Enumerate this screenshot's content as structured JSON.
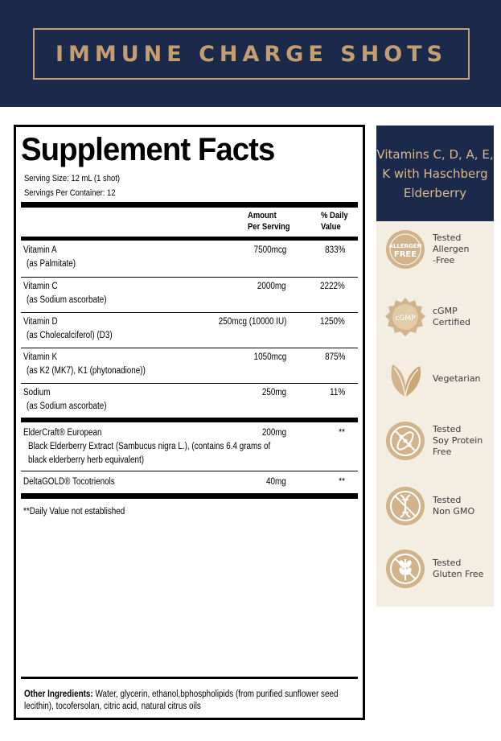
{
  "banner": {
    "title": "IMMUNE CHARGE SHOTS"
  },
  "facts": {
    "title": "Supplement Facts",
    "serving_size": "Serving Size: 12 mL (1 shot)",
    "servings_per_container": "Servings Per Container: 12",
    "header_amount_1": "Amount",
    "header_amount_2": "Per Serving",
    "header_dv_1": "% Daily",
    "header_dv_2": "Value",
    "rows": [
      {
        "name": "Vitamin A",
        "sub": "(as Palmitate)",
        "amount": "7500mcg",
        "dv": "833%"
      },
      {
        "name": "Vitamin C",
        "sub": "(as Sodium ascorbate)",
        "amount": "2000mg",
        "dv": "2222%"
      },
      {
        "name": "Vitamin D",
        "sub": "(as Cholecalciferol) (D3)",
        "amount": "250mcg (10000 IU)",
        "dv": "1250%"
      },
      {
        "name": "Vitamin K",
        "sub": "(as K2 (MK7), K1 (phytonadione))",
        "amount": "1050mcg",
        "dv": "875%"
      },
      {
        "name": "Sodium",
        "sub": "(as Sodium ascorbate)",
        "amount": "250mg",
        "dv": "11%"
      },
      {
        "name": "ElderCraft® European",
        "sub": "Black Elderberry Extract (Sambucus nigra L.),  (contains 6.4 grams of",
        "sub2": "black elderberry herb equivalent)",
        "amount": "200mg",
        "dv": "**"
      },
      {
        "name": "DeltaGOLD® Tocotrienols",
        "amount": "40mg",
        "dv": "**"
      }
    ],
    "footnote": "**Daily Value not established",
    "other_label": "Other Ingredients:",
    "other_text": " Water, glycerin, ethanol,bphospholipids (from purified sunflower seed lecithin), tocofersolan, citric acid, natural citrus oils"
  },
  "panel": {
    "heading": "Vitamins C, D, A, E, K with Haschberg Elderberry",
    "badges": [
      {
        "icon": "allergen-free-icon",
        "icon_text_1": "ALLERGEN",
        "icon_text_2": "FREE",
        "label": "Tested\nAllergen\n-Free"
      },
      {
        "icon": "cgmp-icon",
        "icon_text_1": "cGMP",
        "label": "cGMP\nCertified"
      },
      {
        "icon": "leaf-icon",
        "label": "Vegetarian"
      },
      {
        "icon": "no-soy-icon",
        "label": "Tested\nSoy Protein\nFree"
      },
      {
        "icon": "no-gmo-icon",
        "label": "Tested\nNon GMO"
      },
      {
        "icon": "no-gluten-icon",
        "label": "Tested\nGluten Free"
      }
    ]
  },
  "colors": {
    "navy": "#1b2a4a",
    "gold": "#c49e71",
    "cream": "#f3ede2"
  }
}
